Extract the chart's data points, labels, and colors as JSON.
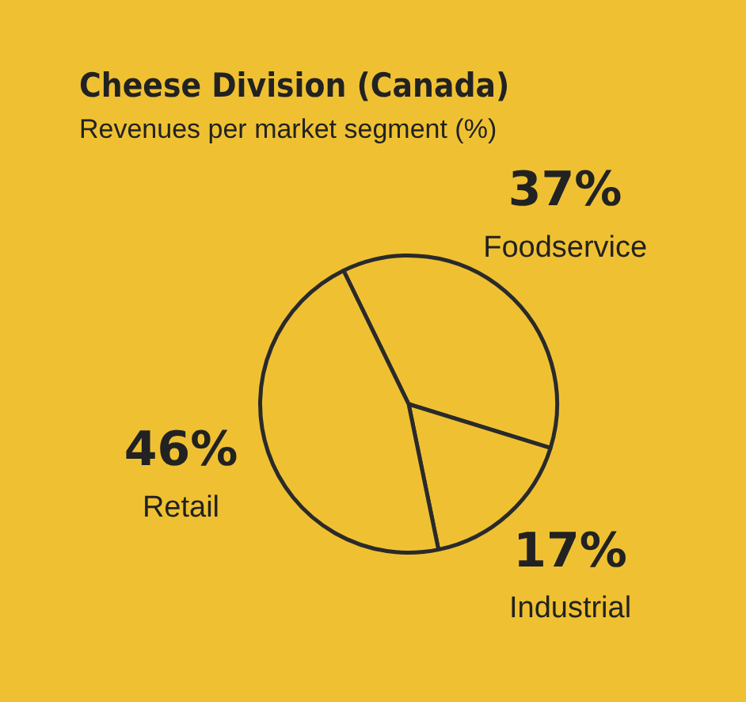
{
  "chart_data": {
    "type": "pie",
    "title": "Cheese Division (Canada)",
    "subtitle": "Revenues per market segment (%)",
    "categories": [
      "Foodservice",
      "Industrial",
      "Retail"
    ],
    "values": [
      37,
      17,
      46
    ],
    "colors": [
      "#efc132",
      "#efc132",
      "#efc132"
    ],
    "value_labels": [
      "37%",
      "17%",
      "46%"
    ],
    "legend": false
  }
}
